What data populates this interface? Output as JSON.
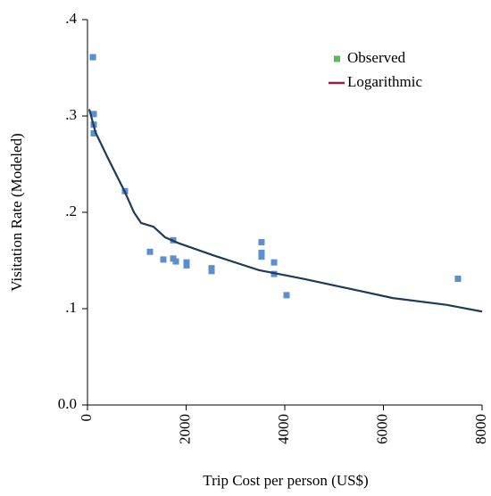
{
  "chart_data": {
    "type": "scatter",
    "xlabel": "Trip Cost per person (US$)",
    "ylabel": "Visitation Rate (Modeled)",
    "xlim": [
      0,
      8000
    ],
    "xticks": [
      0,
      2000,
      4000,
      6000,
      8000
    ],
    "ylim": [
      0,
      0.4
    ],
    "yticks": [
      {
        "value": 0,
        "label": "0.0"
      },
      {
        "value": 0.1,
        "label": ".1"
      },
      {
        "value": 0.2,
        "label": ".2"
      },
      {
        "value": 0.3,
        "label": ".3"
      },
      {
        "value": 0.4,
        "label": ".4"
      }
    ],
    "legend": "upper right",
    "series": [
      {
        "name": "Observed",
        "kind": "scatter",
        "color": "#5b8fcf",
        "legend_color": "#5cb85c",
        "x": [
          109,
          127,
          127,
          127,
          760,
          1267,
          1538,
          1738,
          1738,
          1792,
          2009,
          2009,
          2516,
          2516,
          3529,
          3529,
          3529,
          3783,
          3783,
          4036,
          7511
        ],
        "values": [
          0.361,
          0.302,
          0.291,
          0.282,
          0.222,
          0.159,
          0.151,
          0.171,
          0.152,
          0.149,
          0.148,
          0.145,
          0.142,
          0.139,
          0.169,
          0.158,
          0.154,
          0.148,
          0.136,
          0.114,
          0.131
        ]
      },
      {
        "name": "Logarithmic",
        "kind": "line",
        "color": "#1f3a5a",
        "legend_color": "#9b1b45",
        "x": [
          36,
          163,
          398,
          760,
          941,
          1086,
          1339,
          1575,
          1846,
          2570,
          3475,
          4380,
          5466,
          6190,
          7276,
          8000
        ],
        "values": [
          0.307,
          0.283,
          0.258,
          0.221,
          0.2,
          0.189,
          0.185,
          0.174,
          0.168,
          0.155,
          0.14,
          0.131,
          0.119,
          0.111,
          0.104,
          0.097
        ]
      }
    ]
  }
}
